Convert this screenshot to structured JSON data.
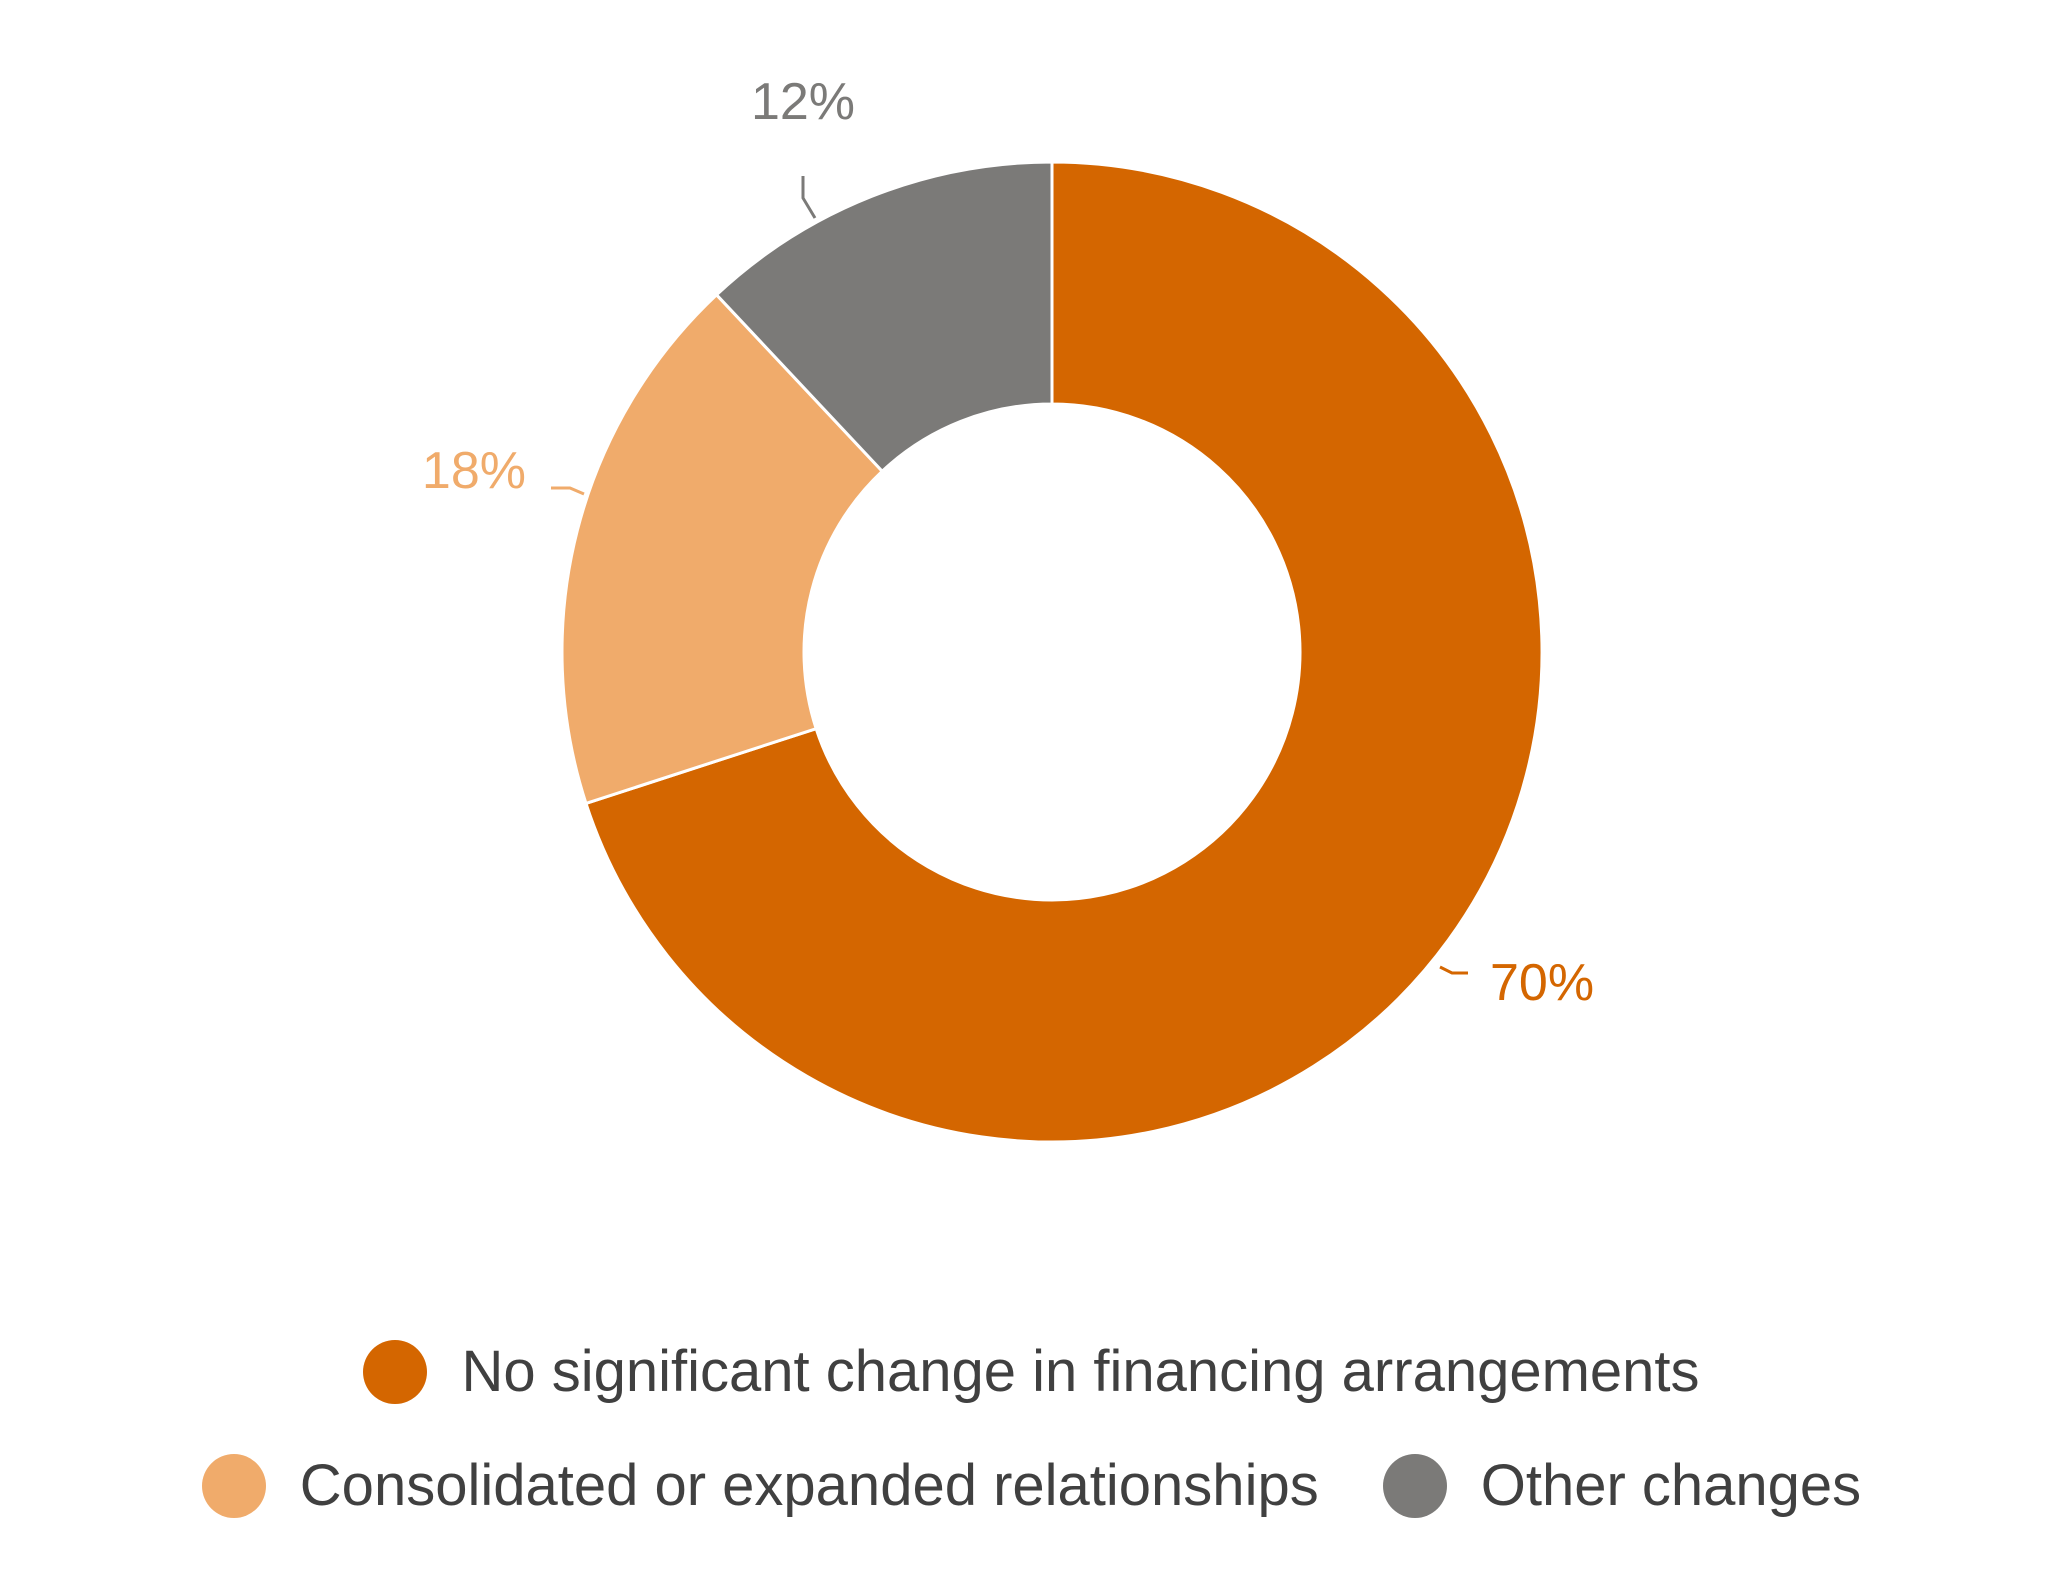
{
  "chart_data": {
    "type": "pie",
    "variant": "donut",
    "start_angle_deg": 0,
    "direction": "clockwise",
    "categories": [
      "No significant change in financing arrangements",
      "Consolidated or expanded relationships",
      "Other changes"
    ],
    "values": [
      70,
      18,
      12
    ],
    "value_labels": [
      "70%",
      "18%",
      "12%"
    ],
    "colors": [
      "#D46600",
      "#F0AB6B",
      "#7B7A78"
    ],
    "legend_position": "bottom",
    "title": ""
  }
}
